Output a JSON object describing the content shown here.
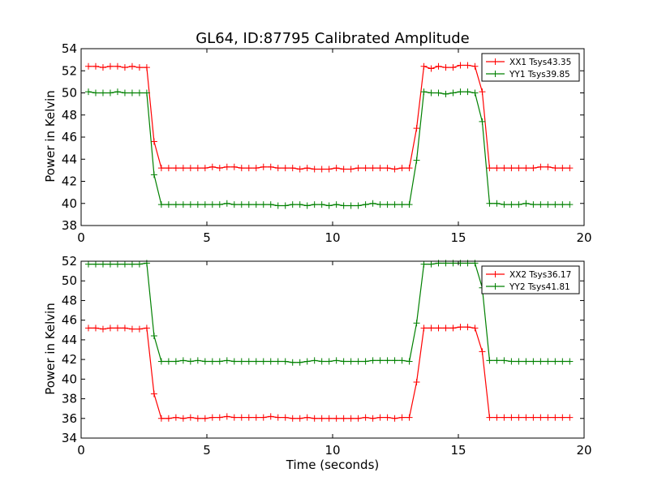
{
  "chart_data": [
    {
      "type": "line",
      "title": "GL64, ID:87795 Calibrated Amplitude",
      "xlabel": "",
      "ylabel": "Power in Kelvin",
      "xlim": [
        0,
        20
      ],
      "ylim": [
        38,
        54
      ],
      "xticks": [
        "0",
        "5",
        "10",
        "15",
        "20"
      ],
      "yticks": [
        "38",
        "40",
        "42",
        "44",
        "46",
        "48",
        "50",
        "52",
        "54"
      ],
      "legend_position": "top-right",
      "grid": false,
      "series": [
        {
          "name": "XX1 Tsys43.35",
          "color": "#ff0000",
          "x": [
            0.29,
            0.58,
            0.87,
            1.16,
            1.45,
            1.74,
            2.03,
            2.32,
            2.61,
            2.9,
            3.19,
            3.48,
            3.77,
            4.06,
            4.35,
            4.64,
            4.93,
            5.22,
            5.51,
            5.8,
            6.09,
            6.38,
            6.67,
            6.96,
            7.25,
            7.54,
            7.83,
            8.12,
            8.41,
            8.7,
            8.99,
            9.28,
            9.57,
            9.86,
            10.15,
            10.44,
            10.73,
            11.02,
            11.31,
            11.6,
            11.89,
            12.18,
            12.47,
            12.76,
            13.05,
            13.34,
            13.63,
            13.92,
            14.21,
            14.5,
            14.79,
            15.08,
            15.37,
            15.66,
            15.95,
            16.24,
            16.53,
            16.82,
            17.11,
            17.4,
            17.69,
            17.98,
            18.27,
            18.56,
            18.85,
            19.14,
            19.43
          ],
          "y": [
            52.4,
            52.4,
            52.3,
            52.4,
            52.4,
            52.3,
            52.4,
            52.3,
            52.3,
            45.6,
            43.2,
            43.2,
            43.2,
            43.2,
            43.2,
            43.2,
            43.2,
            43.3,
            43.2,
            43.3,
            43.3,
            43.2,
            43.2,
            43.2,
            43.3,
            43.3,
            43.2,
            43.2,
            43.2,
            43.1,
            43.2,
            43.1,
            43.1,
            43.1,
            43.2,
            43.1,
            43.1,
            43.2,
            43.2,
            43.2,
            43.2,
            43.2,
            43.1,
            43.2,
            43.2,
            46.8,
            52.4,
            52.2,
            52.4,
            52.3,
            52.3,
            52.5,
            52.5,
            52.4,
            50.1,
            43.2,
            43.2,
            43.2,
            43.2,
            43.2,
            43.2,
            43.2,
            43.3,
            43.3,
            43.2,
            43.2,
            43.2
          ]
        },
        {
          "name": "YY1 Tsys39.85",
          "color": "#008000",
          "x": [
            0.29,
            0.58,
            0.87,
            1.16,
            1.45,
            1.74,
            2.03,
            2.32,
            2.61,
            2.9,
            3.19,
            3.48,
            3.77,
            4.06,
            4.35,
            4.64,
            4.93,
            5.22,
            5.51,
            5.8,
            6.09,
            6.38,
            6.67,
            6.96,
            7.25,
            7.54,
            7.83,
            8.12,
            8.41,
            8.7,
            8.99,
            9.28,
            9.57,
            9.86,
            10.15,
            10.44,
            10.73,
            11.02,
            11.31,
            11.6,
            11.89,
            12.18,
            12.47,
            12.76,
            13.05,
            13.34,
            13.63,
            13.92,
            14.21,
            14.5,
            14.79,
            15.08,
            15.37,
            15.66,
            15.95,
            16.24,
            16.53,
            16.82,
            17.11,
            17.4,
            17.69,
            17.98,
            18.27,
            18.56,
            18.85,
            19.14,
            19.43
          ],
          "y": [
            50.1,
            50.0,
            50.0,
            50.0,
            50.1,
            50.0,
            50.0,
            50.0,
            50.0,
            42.6,
            39.9,
            39.9,
            39.9,
            39.9,
            39.9,
            39.9,
            39.9,
            39.9,
            39.9,
            40.0,
            39.9,
            39.9,
            39.9,
            39.9,
            39.9,
            39.9,
            39.8,
            39.8,
            39.9,
            39.9,
            39.8,
            39.9,
            39.9,
            39.8,
            39.9,
            39.8,
            39.8,
            39.8,
            39.9,
            40.0,
            39.9,
            39.9,
            39.9,
            39.9,
            39.9,
            43.9,
            50.1,
            50.0,
            50.0,
            49.9,
            50.0,
            50.1,
            50.1,
            50.0,
            47.4,
            40.0,
            40.0,
            39.9,
            39.9,
            39.9,
            40.0,
            39.9,
            39.9,
            39.9,
            39.9,
            39.9,
            39.9
          ]
        }
      ]
    },
    {
      "type": "line",
      "title": "",
      "xlabel": "Time (seconds)",
      "ylabel": "Power in Kelvin",
      "xlim": [
        0,
        20
      ],
      "ylim": [
        34,
        52
      ],
      "xticks": [
        "0",
        "5",
        "10",
        "15",
        "20"
      ],
      "yticks": [
        "34",
        "36",
        "38",
        "40",
        "42",
        "44",
        "46",
        "48",
        "50",
        "52"
      ],
      "legend_position": "top-right",
      "grid": false,
      "series": [
        {
          "name": "XX2 Tsys36.17",
          "color": "#ff0000",
          "x": [
            0.29,
            0.58,
            0.87,
            1.16,
            1.45,
            1.74,
            2.03,
            2.32,
            2.61,
            2.9,
            3.19,
            3.48,
            3.77,
            4.06,
            4.35,
            4.64,
            4.93,
            5.22,
            5.51,
            5.8,
            6.09,
            6.38,
            6.67,
            6.96,
            7.25,
            7.54,
            7.83,
            8.12,
            8.41,
            8.7,
            8.99,
            9.28,
            9.57,
            9.86,
            10.15,
            10.44,
            10.73,
            11.02,
            11.31,
            11.6,
            11.89,
            12.18,
            12.47,
            12.76,
            13.05,
            13.34,
            13.63,
            13.92,
            14.21,
            14.5,
            14.79,
            15.08,
            15.37,
            15.66,
            15.95,
            16.24,
            16.53,
            16.82,
            17.11,
            17.4,
            17.69,
            17.98,
            18.27,
            18.56,
            18.85,
            19.14,
            19.43
          ],
          "y": [
            45.2,
            45.2,
            45.1,
            45.2,
            45.2,
            45.2,
            45.1,
            45.1,
            45.2,
            38.5,
            36.0,
            36.0,
            36.1,
            36.0,
            36.1,
            36.0,
            36.0,
            36.1,
            36.1,
            36.2,
            36.1,
            36.1,
            36.1,
            36.1,
            36.1,
            36.2,
            36.1,
            36.1,
            36.0,
            36.0,
            36.1,
            36.0,
            36.0,
            36.0,
            36.0,
            36.0,
            36.0,
            36.0,
            36.1,
            36.0,
            36.1,
            36.1,
            36.0,
            36.1,
            36.1,
            39.7,
            45.2,
            45.2,
            45.2,
            45.2,
            45.2,
            45.3,
            45.3,
            45.2,
            42.8,
            36.1,
            36.1,
            36.1,
            36.1,
            36.1,
            36.1,
            36.1,
            36.1,
            36.1,
            36.1,
            36.1,
            36.1
          ]
        },
        {
          "name": "YY2 Tsys41.81",
          "color": "#008000",
          "x": [
            0.29,
            0.58,
            0.87,
            1.16,
            1.45,
            1.74,
            2.03,
            2.32,
            2.61,
            2.9,
            3.19,
            3.48,
            3.77,
            4.06,
            4.35,
            4.64,
            4.93,
            5.22,
            5.51,
            5.8,
            6.09,
            6.38,
            6.67,
            6.96,
            7.25,
            7.54,
            7.83,
            8.12,
            8.41,
            8.7,
            8.99,
            9.28,
            9.57,
            9.86,
            10.15,
            10.44,
            10.73,
            11.02,
            11.31,
            11.6,
            11.89,
            12.18,
            12.47,
            12.76,
            13.05,
            13.34,
            13.63,
            13.92,
            14.21,
            14.5,
            14.79,
            15.08,
            15.37,
            15.66,
            15.95,
            16.24,
            16.53,
            16.82,
            17.11,
            17.4,
            17.69,
            17.98,
            18.27,
            18.56,
            18.85,
            19.14,
            19.43
          ],
          "y": [
            51.7,
            51.7,
            51.7,
            51.7,
            51.7,
            51.7,
            51.7,
            51.7,
            51.8,
            44.4,
            41.8,
            41.8,
            41.8,
            41.9,
            41.8,
            41.9,
            41.8,
            41.8,
            41.8,
            41.9,
            41.8,
            41.8,
            41.8,
            41.8,
            41.8,
            41.8,
            41.8,
            41.8,
            41.7,
            41.7,
            41.8,
            41.9,
            41.8,
            41.8,
            41.9,
            41.8,
            41.8,
            41.8,
            41.8,
            41.9,
            41.9,
            41.9,
            41.9,
            41.9,
            41.8,
            45.7,
            51.7,
            51.7,
            51.8,
            51.8,
            51.8,
            51.8,
            51.8,
            51.8,
            49.3,
            41.9,
            41.9,
            41.9,
            41.8,
            41.8,
            41.8,
            41.8,
            41.8,
            41.8,
            41.8,
            41.8,
            41.8
          ]
        }
      ]
    }
  ]
}
